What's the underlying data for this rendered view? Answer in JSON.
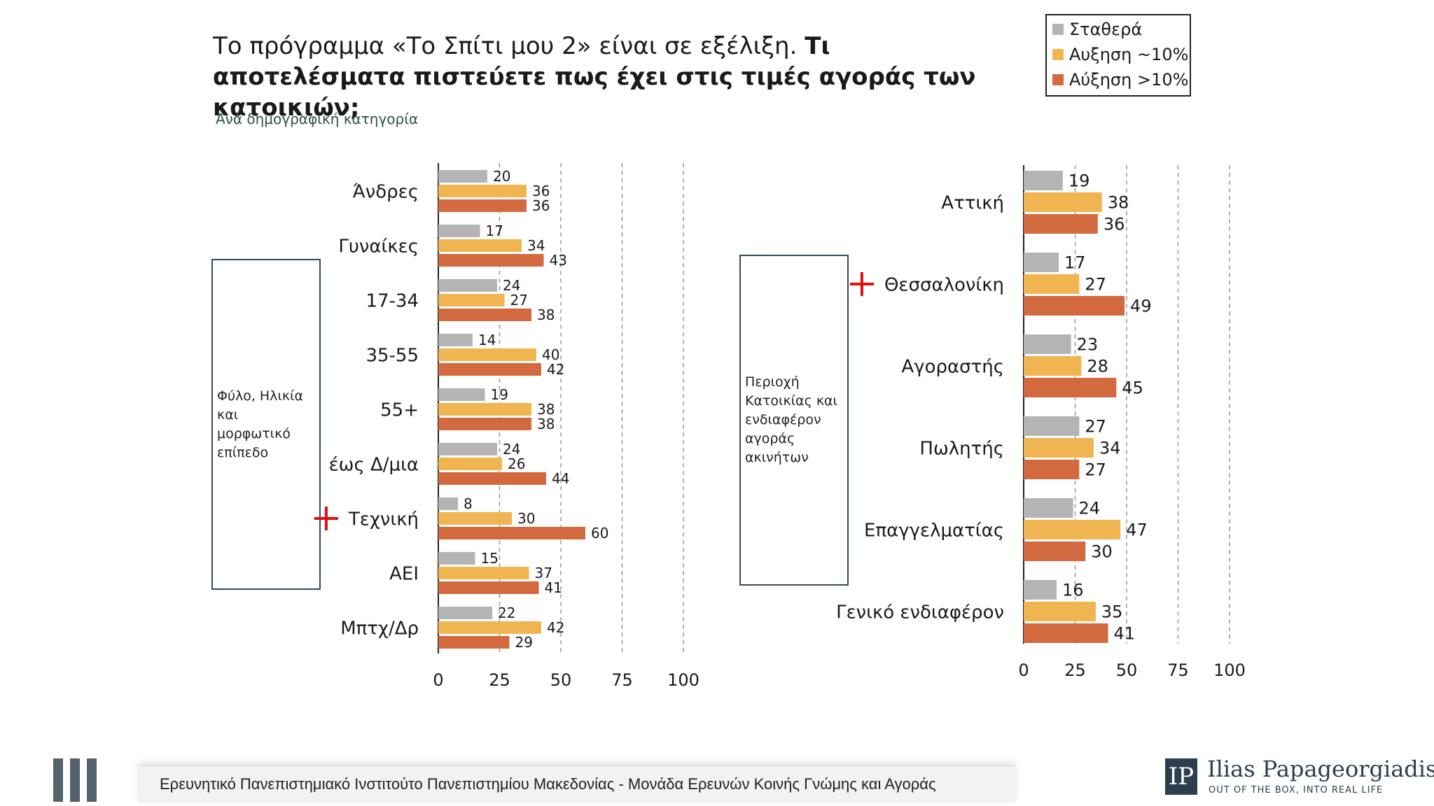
{
  "title": {
    "lead": "Το πρόγραμμα «Το Σπίτι μου 2» είναι σε εξέλιξη.",
    "question": "Τι αποτελέσματα πιστεύετε πως έχει στις τιμές αγοράς των κατοικιών;"
  },
  "subtitle": "Ανά δημογραφική κατηγορία",
  "legend": [
    {
      "label": "Σταθερά",
      "color": "#b4b4b4"
    },
    {
      "label": "Αυξηση ~10%",
      "color": "#f0b451"
    },
    {
      "label": "Αύξηση >10%",
      "color": "#d2693f"
    }
  ],
  "left_box": "Φύλο, Ηλικία και μορφωτικό επίπεδο",
  "right_box": "Περιοχή Κατοικίας και ενδιαφέρον αγοράς ακινήτων",
  "footer": {
    "institute": "Ερευνητικό Πανεπιστημιακό Ινστιτούτο Πανεπιστημίου Μακεδονίας - Μονάδα Ερευνών Κοινής Γνώμης και Αγοράς",
    "brand_name": "Ilias Papageorgiadis",
    "brand_tagline": "OUT OF THE BOX, INTO REAL LIFE",
    "brand_letter": "IP"
  },
  "chart_data": [
    {
      "type": "bar",
      "orientation": "horizontal",
      "xlim": [
        0,
        100
      ],
      "ticks": [
        0,
        25,
        50,
        75,
        100
      ],
      "categories": [
        "Άνδρες",
        "Γυναίκες",
        "17-34",
        "35-55",
        "55+",
        "έως Δ/μια",
        "Τεχνική",
        "ΑΕΙ",
        "Μπτχ/Δρ"
      ],
      "highlighted": [
        "Τεχνική"
      ],
      "series": [
        {
          "name": "Σταθερά",
          "values": [
            20,
            17,
            24,
            14,
            19,
            24,
            8,
            15,
            22
          ]
        },
        {
          "name": "Αυξηση ~10%",
          "values": [
            36,
            34,
            27,
            40,
            38,
            26,
            30,
            37,
            42
          ]
        },
        {
          "name": "Αύξηση >10%",
          "values": [
            36,
            43,
            38,
            42,
            38,
            44,
            60,
            41,
            29
          ]
        }
      ]
    },
    {
      "type": "bar",
      "orientation": "horizontal",
      "xlim": [
        0,
        100
      ],
      "ticks": [
        0,
        25,
        50,
        75,
        100
      ],
      "categories": [
        "Αττική",
        "Θεσσαλονίκη",
        "Αγοραστής",
        "Πωλητής",
        "Επαγγελματίας",
        "Γενικό ενδιαφέρον"
      ],
      "highlighted": [
        "Θεσσαλονίκη"
      ],
      "series": [
        {
          "name": "Σταθερά",
          "values": [
            19,
            17,
            23,
            27,
            24,
            16
          ]
        },
        {
          "name": "Αυξηση ~10%",
          "values": [
            38,
            27,
            28,
            34,
            47,
            35
          ]
        },
        {
          "name": "Αύξηση >10%",
          "values": [
            36,
            49,
            45,
            27,
            30,
            41
          ]
        }
      ]
    }
  ]
}
